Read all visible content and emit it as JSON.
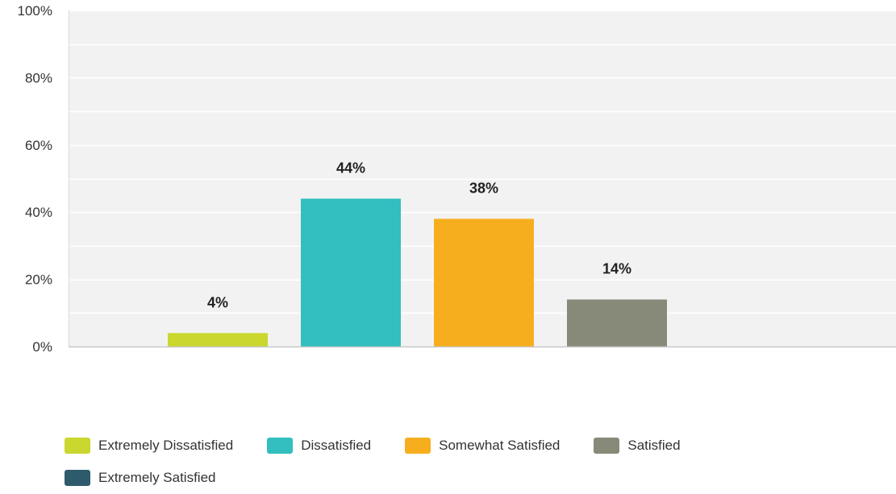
{
  "chart_data": {
    "type": "bar",
    "title": "",
    "xlabel": "",
    "ylabel": "",
    "ylim": [
      0,
      100
    ],
    "yticks": [
      "0%",
      "20%",
      "40%",
      "60%",
      "80%",
      "100%"
    ],
    "grid": true,
    "legend_position": "bottom",
    "categories": [
      "Extremely Dissatisfied",
      "Dissatisfied",
      "Somewhat Satisfied",
      "Satisfied",
      "Extremely Satisfied"
    ],
    "values": [
      4,
      44,
      38,
      14,
      0
    ],
    "data_labels": [
      "4%",
      "44%",
      "38%",
      "14%",
      ""
    ],
    "colors": [
      "#c9d72e",
      "#33bec0",
      "#f6ae1f",
      "#878a79",
      "#2e5b6b"
    ]
  },
  "legend": {
    "items": [
      {
        "label": "Extremely Dissatisfied",
        "color": "#c9d72e"
      },
      {
        "label": "Dissatisfied",
        "color": "#33bec0"
      },
      {
        "label": "Somewhat Satisfied",
        "color": "#f6ae1f"
      },
      {
        "label": "Satisfied",
        "color": "#878a79"
      },
      {
        "label": "Extremely Satisfied",
        "color": "#2e5b6b"
      }
    ]
  }
}
